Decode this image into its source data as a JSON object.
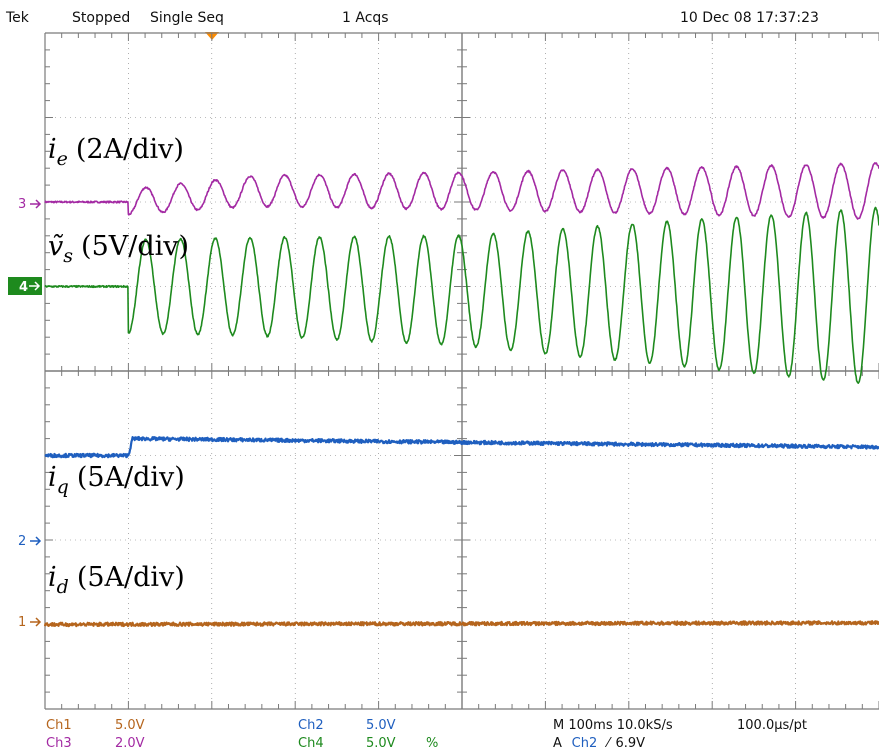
{
  "header": {
    "brand": "Tek",
    "status": "Stopped",
    "mode": "Single Seq",
    "acqs": "1 Acqs",
    "datetime": "10 Dec 08 17:37:23"
  },
  "footer": {
    "ch1_name": "Ch1",
    "ch1_scale": "5.0V",
    "ch2_name": "Ch2",
    "ch2_scale": "5.0V",
    "ch3_name": "Ch3",
    "ch3_scale": "2.0V",
    "ch4_name": "Ch4",
    "ch4_scale": "5.0V",
    "ch4_flag": "%",
    "timebase": "M 100ms 10.0kS/s",
    "per_point": "100.0µs/pt",
    "trigger_prefix": "A",
    "trigger_source": "Ch2",
    "trigger_slope": "⁄",
    "trigger_level": "6.9V"
  },
  "labels": {
    "ie": "i",
    "ie_sub": "e",
    "ie_scale": "(2A/div)",
    "vs": "ṽ",
    "vs_sub": "s",
    "vs_scale": "(5V/div)",
    "iq": "i",
    "iq_sub": "q",
    "iq_scale": "(5A/div)",
    "id": "i",
    "id_sub": "d",
    "id_scale": "(5A/div)"
  },
  "markers": {
    "ch3": "3",
    "ch4": "4",
    "ch2": "2",
    "ch1": "1"
  },
  "colors": {
    "ch1": "#b5651d",
    "ch2": "#1f5fbf",
    "ch3": "#a32aa3",
    "ch4": "#1e8a1e",
    "grid": "#7a7a7a",
    "trigger_marker": "#ff8c00"
  },
  "chart_data": {
    "type": "line",
    "title": "",
    "x_unit": "div",
    "xlim": [
      0,
      10
    ],
    "ylim": [
      -4,
      4
    ],
    "y_unit": "div",
    "grid": true,
    "divisions": {
      "x": 10,
      "y": 8
    },
    "trigger_x": 1.0,
    "series": [
      {
        "name": "Ch3",
        "channel_label": "i_e (2A/div)",
        "kind": "sine",
        "offset_div": 2.0,
        "points_x": [
          0,
          1.0,
          2.5,
          5.0,
          7.5,
          10
        ],
        "points_level": [
          0,
          0,
          0.13,
          0.13,
          0.13,
          0.13
        ],
        "points_amplitude": [
          0,
          0.15,
          0.18,
          0.22,
          0.27,
          0.33
        ],
        "cycles_per_div": 2.4
      },
      {
        "name": "Ch4",
        "channel_label": "ṽ_s (5V/div)",
        "kind": "sine",
        "offset_div": 1.0,
        "points_x": [
          0,
          1.0,
          2.5,
          5.0,
          7.5,
          10
        ],
        "points_level": [
          0,
          0,
          0,
          -0.05,
          -0.08,
          -0.12
        ],
        "points_amplitude": [
          0,
          0.55,
          0.58,
          0.65,
          0.85,
          1.05
        ],
        "cycles_per_div": 2.4
      },
      {
        "name": "Ch2",
        "channel_label": "i_q (5A/div)",
        "kind": "level",
        "offset_div": -1.0,
        "points_x": [
          0,
          1.0,
          1.05,
          10
        ],
        "points_level": [
          0,
          0,
          0.2,
          0.1
        ]
      },
      {
        "name": "Ch1",
        "channel_label": "i_d (5A/div)",
        "kind": "level",
        "offset_div": -3.0,
        "points_x": [
          0,
          10
        ],
        "points_level": [
          0,
          0.02
        ]
      }
    ]
  }
}
